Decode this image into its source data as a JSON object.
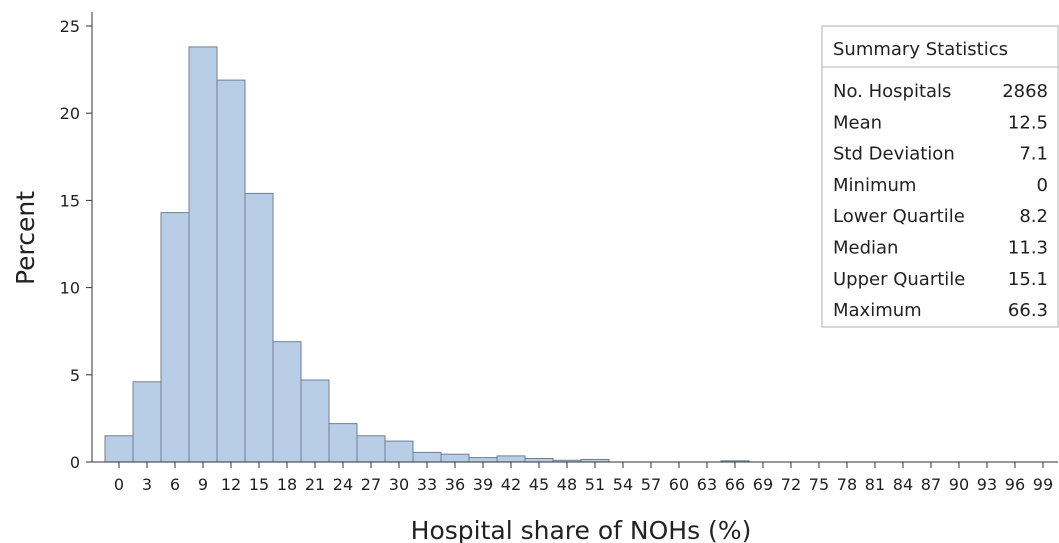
{
  "chart_data": {
    "type": "bar",
    "title": "",
    "xlabel": "Hospital share of NOHs (%)",
    "ylabel": "Percent",
    "ylim": [
      0,
      25
    ],
    "yticks": [
      0,
      5,
      10,
      15,
      20,
      25
    ],
    "xticks": [
      0,
      3,
      6,
      9,
      12,
      15,
      18,
      21,
      24,
      27,
      30,
      33,
      36,
      39,
      42,
      45,
      48,
      51,
      54,
      57,
      60,
      63,
      66,
      69,
      72,
      75,
      78,
      81,
      84,
      87,
      90,
      93,
      96,
      99
    ],
    "bin_width": 3,
    "bins": [
      {
        "mid": 0,
        "value": 1.5
      },
      {
        "mid": 3,
        "value": 4.6
      },
      {
        "mid": 6,
        "value": 14.3
      },
      {
        "mid": 9,
        "value": 23.8
      },
      {
        "mid": 12,
        "value": 21.9
      },
      {
        "mid": 15,
        "value": 15.4
      },
      {
        "mid": 18,
        "value": 6.9
      },
      {
        "mid": 21,
        "value": 4.7
      },
      {
        "mid": 24,
        "value": 2.2
      },
      {
        "mid": 27,
        "value": 1.5
      },
      {
        "mid": 30,
        "value": 1.2
      },
      {
        "mid": 33,
        "value": 0.55
      },
      {
        "mid": 36,
        "value": 0.45
      },
      {
        "mid": 39,
        "value": 0.25
      },
      {
        "mid": 42,
        "value": 0.35
      },
      {
        "mid": 45,
        "value": 0.2
      },
      {
        "mid": 48,
        "value": 0.1
      },
      {
        "mid": 51,
        "value": 0.15
      },
      {
        "mid": 66,
        "value": 0.07
      }
    ],
    "grid": false,
    "colors": {
      "bar_fill": "#b8cde6",
      "bar_edge": "#6f7f94"
    }
  },
  "summary": {
    "title": "Summary Statistics",
    "rows": [
      {
        "label": "No. Hospitals",
        "value": "2868"
      },
      {
        "label": "Mean",
        "value": "12.5"
      },
      {
        "label": "Std Deviation",
        "value": "7.1"
      },
      {
        "label": "Minimum",
        "value": "0"
      },
      {
        "label": "Lower Quartile",
        "value": "8.2"
      },
      {
        "label": "Median",
        "value": "11.3"
      },
      {
        "label": "Upper Quartile",
        "value": "15.1"
      },
      {
        "label": "Maximum",
        "value": "66.3"
      }
    ]
  }
}
